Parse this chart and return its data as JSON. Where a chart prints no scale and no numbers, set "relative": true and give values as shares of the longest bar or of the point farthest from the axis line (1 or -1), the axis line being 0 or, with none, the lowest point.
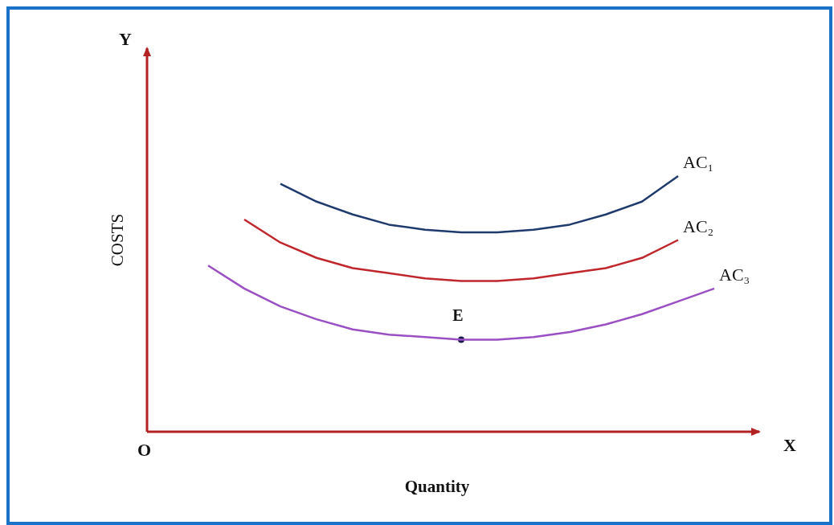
{
  "chart_data": {
    "type": "line",
    "relative": true,
    "xlabel": "Quantity",
    "ylabel": "COSTS",
    "annotations": [
      "Y",
      "X",
      "O",
      {
        "text": "E",
        "y": 0.36
      }
    ],
    "categories": [
      null,
      null,
      null,
      null,
      null,
      null,
      null,
      null,
      null,
      null,
      null,
      null,
      null,
      null,
      null
    ],
    "series": [
      {
        "name": "AC₁",
        "color": "#1f3b6e",
        "values": [
          null,
          null,
          0.97,
          0.9,
          0.85,
          0.81,
          0.79,
          0.78,
          0.78,
          0.79,
          0.81,
          0.85,
          0.9,
          1.0,
          null
        ]
      },
      {
        "name": "AC₂",
        "color": "#c0272d",
        "values": [
          null,
          0.83,
          0.74,
          0.68,
          0.64,
          0.62,
          0.6,
          0.59,
          0.59,
          0.6,
          0.62,
          0.64,
          0.68,
          0.75,
          null
        ]
      },
      {
        "name": "AC₃",
        "color": "#9b4fc4",
        "values": [
          0.65,
          0.56,
          0.49,
          0.44,
          0.4,
          0.38,
          0.37,
          0.36,
          0.36,
          0.37,
          0.39,
          0.42,
          0.46,
          0.51,
          0.56
        ]
      }
    ]
  }
}
